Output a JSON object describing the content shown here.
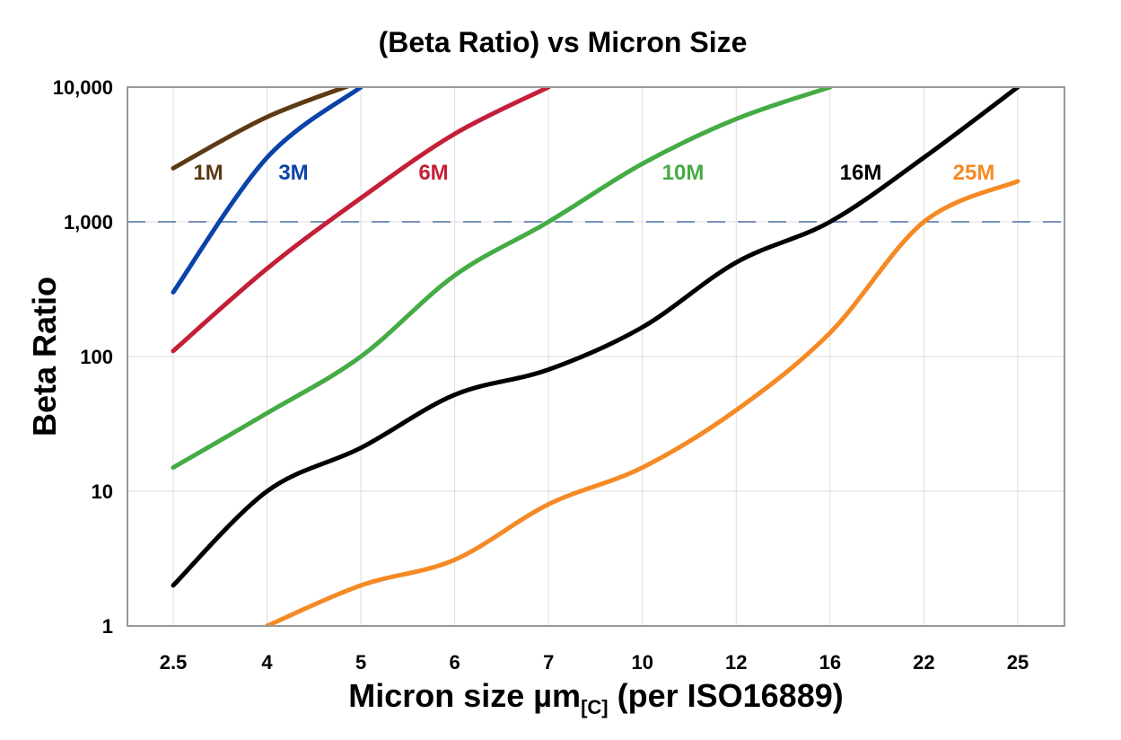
{
  "chart_data": {
    "type": "line",
    "title": "(Beta Ratio) vs Micron Size",
    "xlabel": "Micron size µm",
    "xlabel_subscript": "[C]",
    "xlabel_suffix": " (per ISO16889)",
    "ylabel": "Beta Ratio",
    "yscale": "log",
    "ylim": [
      1,
      10000
    ],
    "yticks": [
      1,
      10,
      100,
      1000,
      10000
    ],
    "ytick_labels": [
      "1",
      "10",
      "100",
      "1,000",
      "10,000"
    ],
    "categories": [
      "2.5",
      "4",
      "5",
      "6",
      "7",
      "10",
      "12",
      "16",
      "22",
      "25"
    ],
    "grid": true,
    "reference_line": {
      "y": 1000,
      "style": "dashed",
      "color": "#4a6fa5"
    },
    "series": [
      {
        "name": "1M",
        "color": "#5c3a14",
        "values": [
          2500,
          6000,
          11000,
          null,
          null,
          null,
          null,
          null,
          null,
          null
        ]
      },
      {
        "name": "3M",
        "color": "#0b43a8",
        "values": [
          300,
          3000,
          10000,
          null,
          null,
          null,
          null,
          null,
          null,
          null
        ]
      },
      {
        "name": "6M",
        "color": "#c41f38",
        "values": [
          110,
          450,
          1500,
          4500,
          10000,
          null,
          null,
          null,
          null,
          null
        ]
      },
      {
        "name": "10M",
        "color": "#45ab45",
        "values": [
          15,
          38,
          100,
          400,
          1000,
          2700,
          5800,
          10000,
          null,
          null
        ]
      },
      {
        "name": "16M",
        "color": "#000000",
        "values": [
          2,
          10,
          21,
          52,
          80,
          165,
          500,
          1000,
          3000,
          10000
        ]
      },
      {
        "name": "25M",
        "color": "#f58a25",
        "values": [
          null,
          1,
          2,
          3.1,
          8,
          15,
          40,
          150,
          1000,
          2000
        ]
      }
    ]
  }
}
